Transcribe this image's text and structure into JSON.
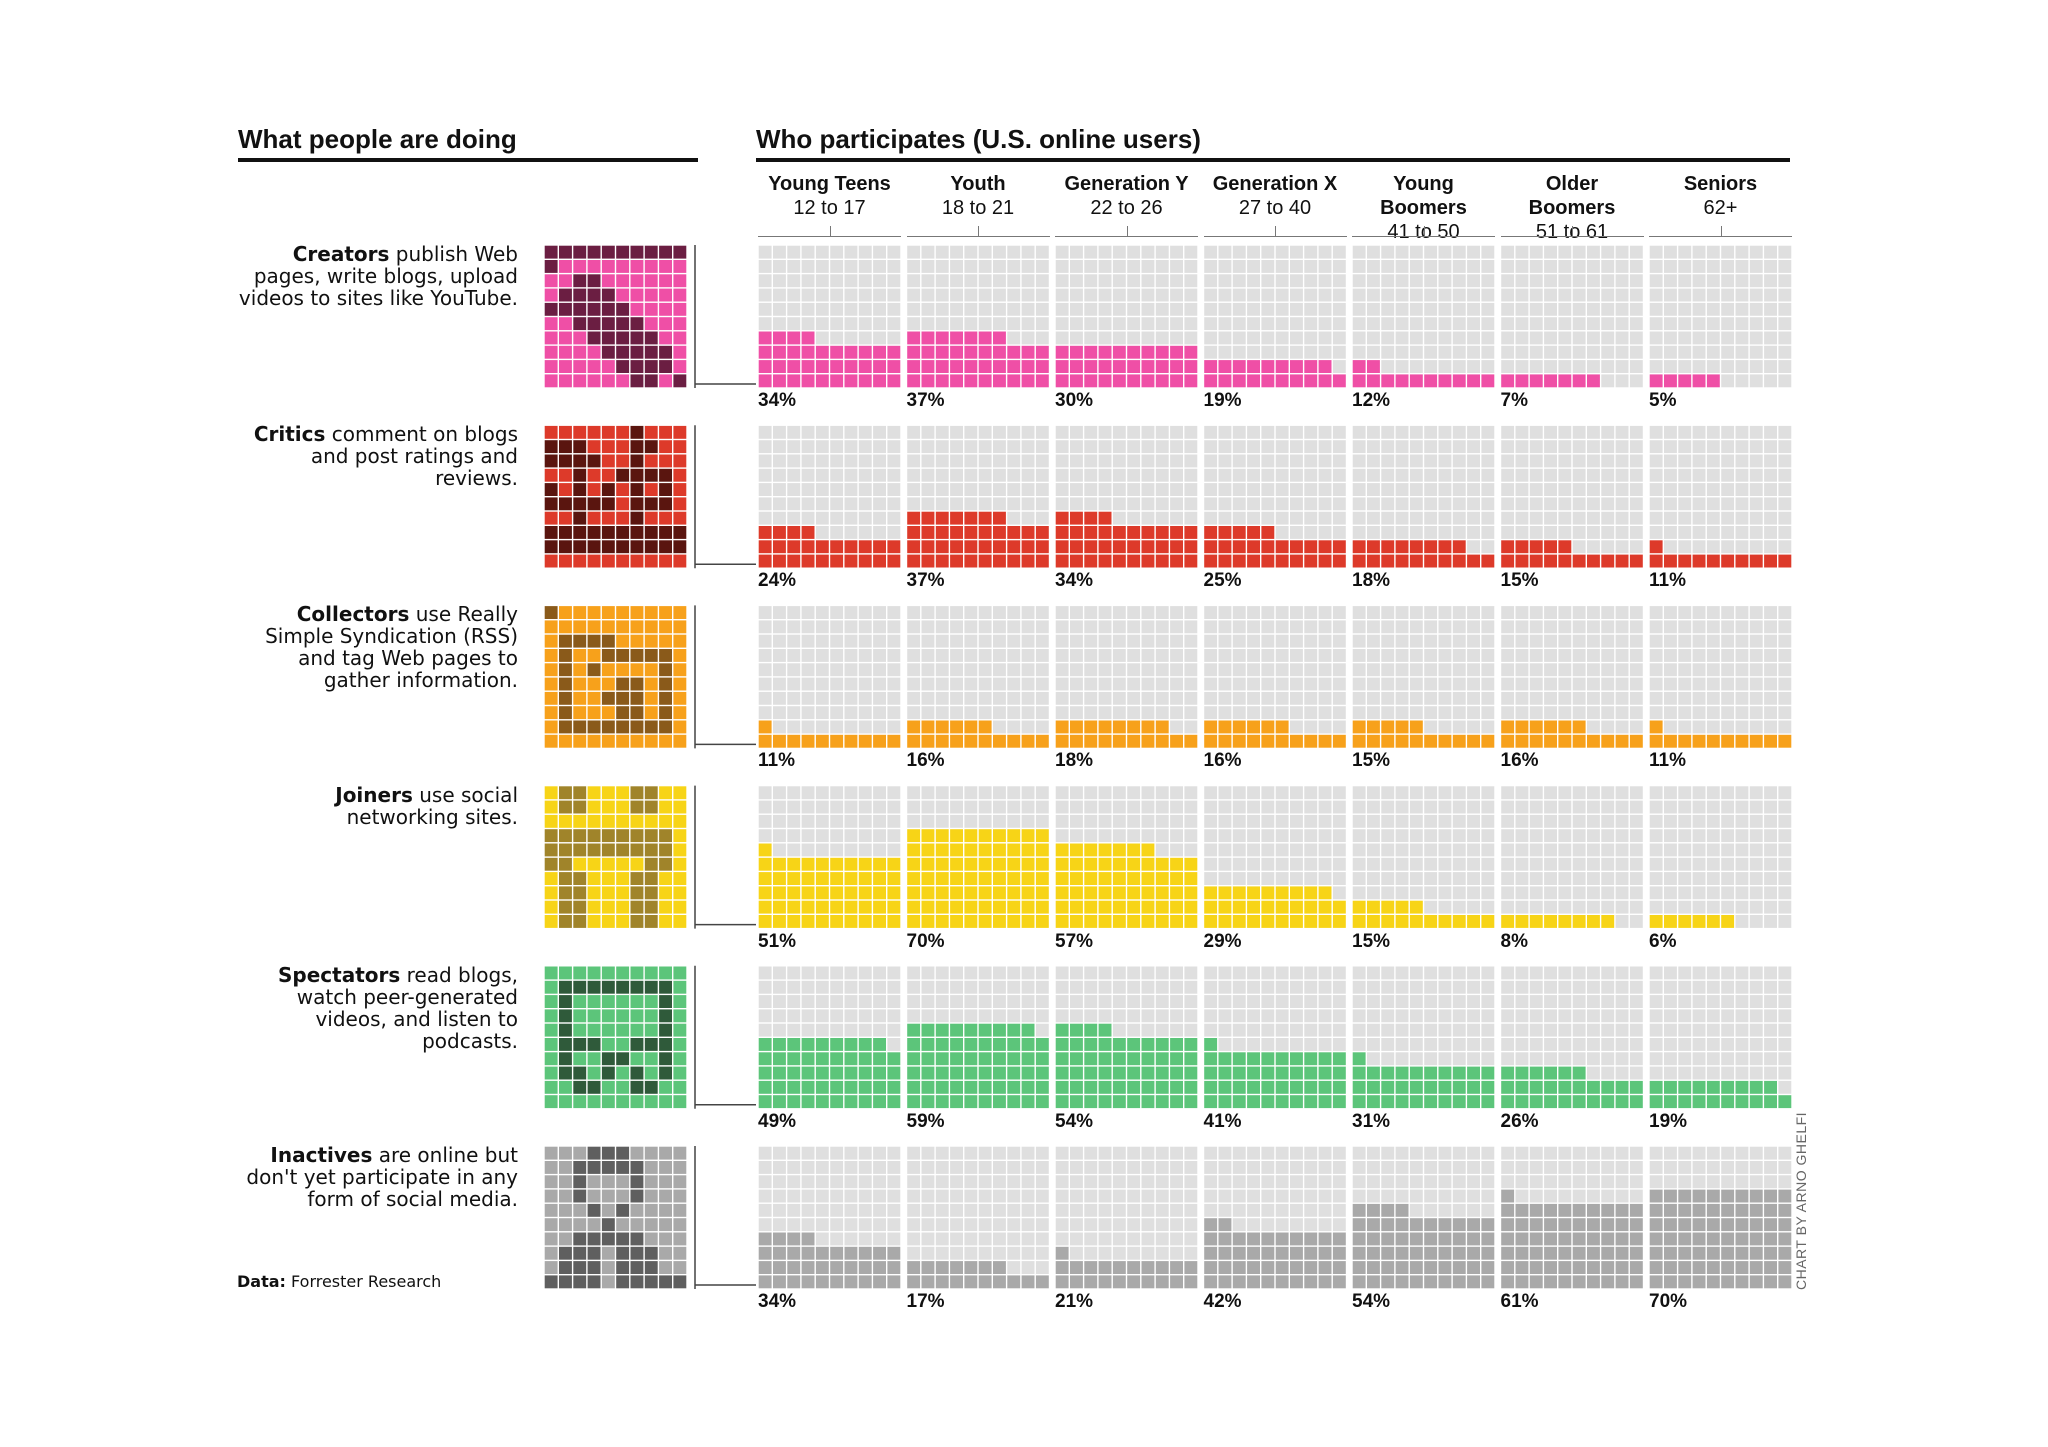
{
  "headers": {
    "left": "What people are doing",
    "right": "Who participates (U.S. online users)"
  },
  "source": {
    "label": "Data:",
    "text": "Forrester Research"
  },
  "credit": "CHART BY ARNO GHELFI",
  "groups": [
    {
      "name": "Young Teens",
      "ages": "12 to 17"
    },
    {
      "name": "Youth",
      "ages": "18 to 21"
    },
    {
      "name": "Generation Y",
      "ages": "22 to 26"
    },
    {
      "name": "Generation X",
      "ages": "27 to 40"
    },
    {
      "name": "Young Boomers",
      "ages": "41 to 50"
    },
    {
      "name": "Older Boomers",
      "ages": "51 to 61"
    },
    {
      "name": "Seniors",
      "ages": "62+"
    }
  ],
  "categories": [
    {
      "bold": "Creators",
      "rest": " publish Web pages, write blogs, upload videos to sites like YouTube.",
      "labels": [
        "34%",
        "37%",
        "30%",
        "19%",
        "12%",
        "7%",
        "5%"
      ]
    },
    {
      "bold": "Critics",
      "rest": " comment on blogs and post ratings and reviews.",
      "labels": [
        "24%",
        "37%",
        "34%",
        "25%",
        "18%",
        "15%",
        "11%"
      ]
    },
    {
      "bold": "Collectors",
      "rest": " use Really Simple Syndication (RSS) and tag Web pages to gather information.",
      "labels": [
        "11%",
        "16%",
        "18%",
        "16%",
        "15%",
        "16%",
        "11%"
      ]
    },
    {
      "bold": "Joiners",
      "rest": " use social networking sites.",
      "labels": [
        "51%",
        "70%",
        "57%",
        "29%",
        "15%",
        "8%",
        "6%"
      ]
    },
    {
      "bold": "Spectators",
      "rest": " read blogs, watch peer-generated videos, and listen to podcasts.",
      "labels": [
        "49%",
        "59%",
        "54%",
        "41%",
        "31%",
        "26%",
        "19%"
      ]
    },
    {
      "bold": "Inactives",
      "rest": " are online but don't yet participate in any form of social media.",
      "labels": [
        "34%",
        "17%",
        "21%",
        "42%",
        "54%",
        "61%",
        "70%"
      ]
    }
  ],
  "chart_data": {
    "type": "waffle",
    "title": "Who participates (U.S. online users)",
    "categories": [
      "Young Teens 12 to 17",
      "Youth 18 to 21",
      "Generation Y 22 to 26",
      "Generation X 27 to 40",
      "Young Boomers 41 to 50",
      "Older Boomers 51 to 61",
      "Seniors 62+"
    ],
    "series": [
      {
        "name": "Creators",
        "values": [
          34,
          37,
          30,
          19,
          12,
          7,
          5
        ],
        "color": "#ef4fa6"
      },
      {
        "name": "Critics",
        "values": [
          24,
          37,
          34,
          25,
          18,
          15,
          11
        ],
        "color": "#dd3a2a"
      },
      {
        "name": "Collectors",
        "values": [
          11,
          16,
          18,
          16,
          15,
          16,
          11
        ],
        "color": "#f7a11b"
      },
      {
        "name": "Joiners",
        "values": [
          51,
          70,
          57,
          29,
          15,
          8,
          6
        ],
        "color": "#f7d417"
      },
      {
        "name": "Spectators",
        "values": [
          49,
          59,
          54,
          41,
          31,
          26,
          19
        ],
        "color": "#5cc57a"
      },
      {
        "name": "Inactives",
        "values": [
          34,
          17,
          21,
          42,
          54,
          61,
          70
        ],
        "color": "#a9a9a9"
      }
    ],
    "empty_color": "#dfdfdf",
    "ylim": [
      0,
      100
    ]
  },
  "icons": [
    {
      "name": "creators-pen-icon",
      "dark": "#6b1e42",
      "bg": "#ef4fa6"
    },
    {
      "name": "critics-quote-icon",
      "dark": "#5a150f",
      "bg": "#dd3a2a"
    },
    {
      "name": "collectors-folder-icon",
      "dark": "#8a5a1a",
      "bg": "#f7a11b"
    },
    {
      "name": "joiners-people-icon",
      "dark": "#a0842a",
      "bg": "#f7d417"
    },
    {
      "name": "spectators-screen-icon",
      "dark": "#2f5a3a",
      "bg": "#5cc57a"
    },
    {
      "name": "inactives-person-icon",
      "dark": "#5f5f5f",
      "bg": "#a9a9a9"
    }
  ]
}
